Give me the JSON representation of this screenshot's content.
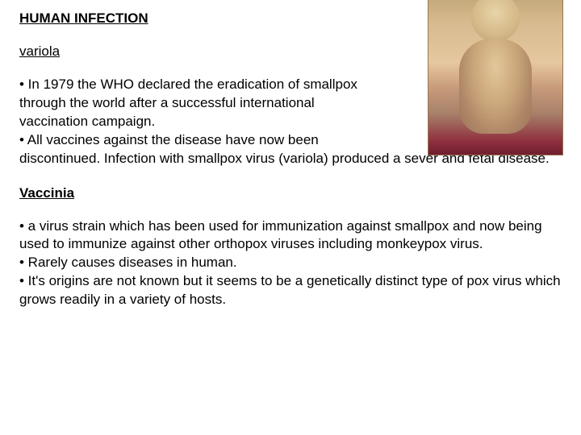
{
  "title": "HUMAN INFECTION",
  "section1": {
    "heading": "variola",
    "line1": "• In 1979 the WHO declared the eradication of smallpox",
    "line2": "through the world after a successful international",
    "line3": "vaccination campaign.",
    "line4": "• All vaccines against the disease have now been",
    "line5": "discontinued. Infection with smallpox virus (variola) produced a sever and fetal disease."
  },
  "section2": {
    "heading": "Vaccinia",
    "line1": "• a virus strain which has been used for immunization against smallpox and now being used to immunize against other orthopox viruses including monkeypox virus.",
    "line2": "• Rarely causes diseases in human.",
    "line3": "• It's origins are not known but it seems to be a genetically distinct type of pox virus which grows readily in a variety of hosts."
  },
  "image": {
    "semantic": "child-with-pox-rash-photo"
  }
}
